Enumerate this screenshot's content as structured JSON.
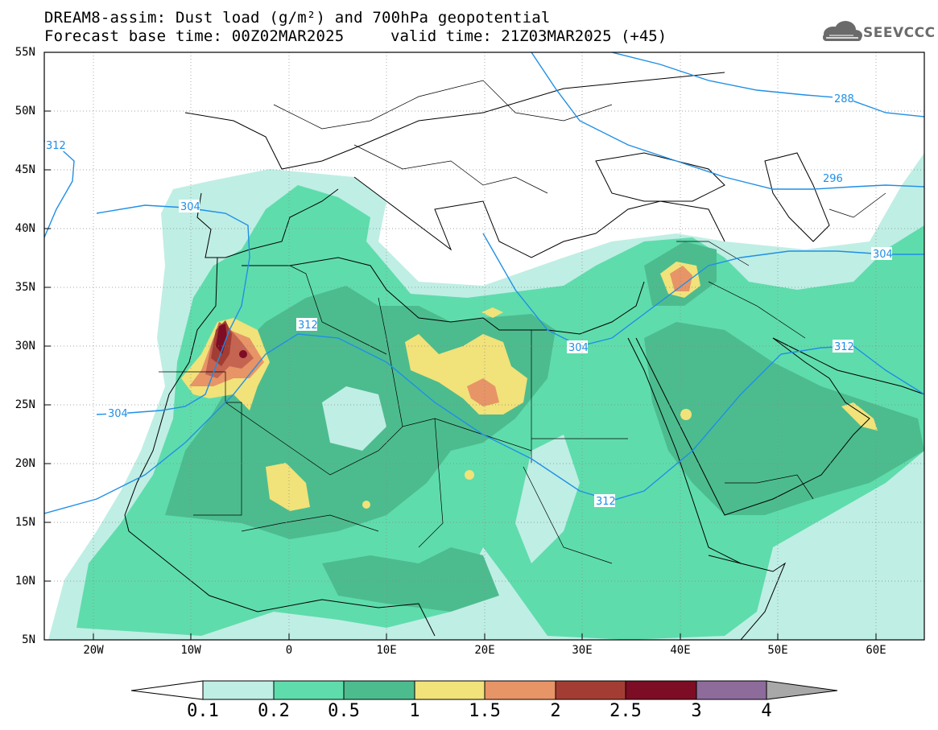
{
  "title": {
    "line1": "DREAM8-assim: Dust load (g/m²) and 700hPa geopotential",
    "line2": "Forecast base time: 00Z02MAR2025",
    "valid": "valid time: 21Z03MAR2025 (+45)"
  },
  "logo": {
    "text": "SEEVCCC",
    "icon": "cloud-icon"
  },
  "map": {
    "lon_range": [
      -25,
      65
    ],
    "lat_range": [
      5,
      55
    ],
    "y_ticks": [
      "55N",
      "50N",
      "45N",
      "40N",
      "35N",
      "30N",
      "25N",
      "20N",
      "15N",
      "10N",
      "5N"
    ],
    "x_ticks": [
      "20W",
      "10W",
      "0",
      "10E",
      "20E",
      "30E",
      "40E",
      "50E",
      "60E"
    ],
    "contour_labels": [
      "312",
      "304",
      "312",
      "304",
      "304",
      "312",
      "312",
      "296",
      "288",
      "304"
    ]
  },
  "colorbar": {
    "labels": [
      "0.1",
      "0.2",
      "0.5",
      "1",
      "1.5",
      "2",
      "2.5",
      "3",
      "4"
    ],
    "colors": {
      "c01": "#bfeee4",
      "c02": "#5fdcac",
      "c05": "#4cbc8e",
      "c1": "#f1e27a",
      "c15": "#e79467",
      "c2": "#c46451",
      "c25": "#a33d33",
      "c3": "#7d0d25",
      "c4": "#8d6b9b",
      "over": "#a8a8a8"
    }
  }
}
